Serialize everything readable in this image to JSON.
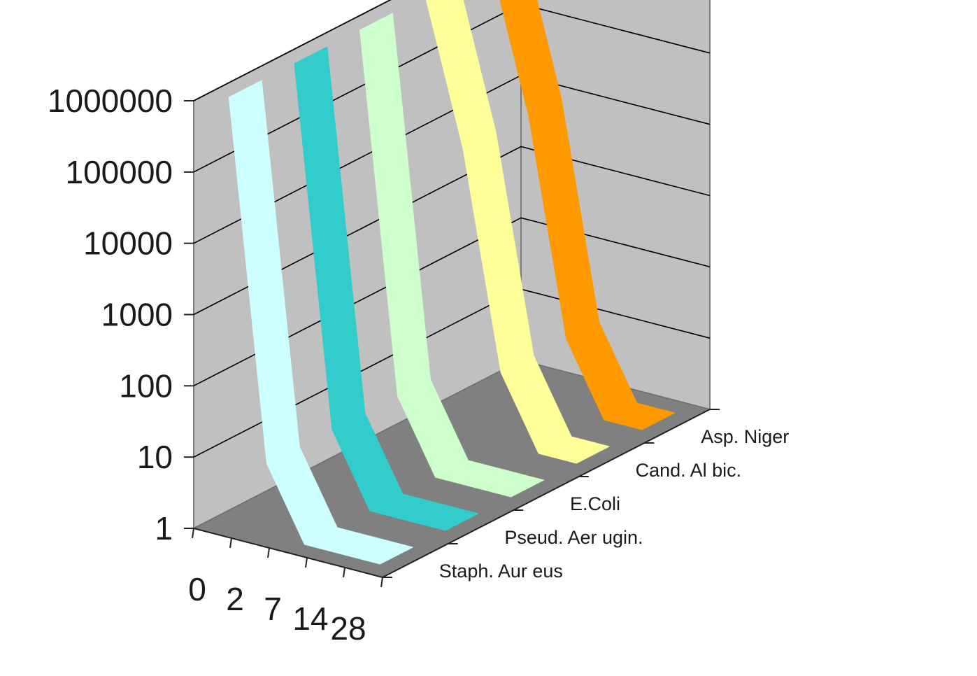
{
  "chart_data": {
    "type": "line",
    "variant": "3d-ribbon",
    "scale": "log",
    "ylim": [
      1,
      1000000
    ],
    "y_ticks": [
      "1",
      "10",
      "100",
      "1000",
      "10000",
      "100000",
      "1000000"
    ],
    "y_tick_values": [
      1,
      10,
      100,
      1000,
      10000,
      100000,
      1000000
    ],
    "categories": [
      "0",
      "2",
      "7",
      "14",
      "28"
    ],
    "grid": true,
    "series": [
      {
        "name": "Staph. Aur eus",
        "values": [
          1000000,
          10,
          1,
          1,
          1
        ],
        "color": "#ccffff"
      },
      {
        "name": "Pseud. Aer ugin.",
        "values": [
          1000000,
          10,
          1,
          1,
          1
        ],
        "color": "#33cccc"
      },
      {
        "name": "E.Coli",
        "values": [
          1000000,
          10,
          1,
          1,
          1
        ],
        "color": "#ccffcc"
      },
      {
        "name": "Cand. Al bic.",
        "values": [
          1000000,
          10000,
          10,
          1,
          1
        ],
        "color": "#ffff99"
      },
      {
        "name": "Asp. Niger",
        "values": [
          1000000,
          10000,
          10,
          1,
          1
        ],
        "color": "#ff9900"
      }
    ],
    "colors": {
      "back_wall": "#c0c0c0",
      "side_wall": "#c0c0c0",
      "floor": "#808080",
      "gridline": "#000000"
    }
  }
}
